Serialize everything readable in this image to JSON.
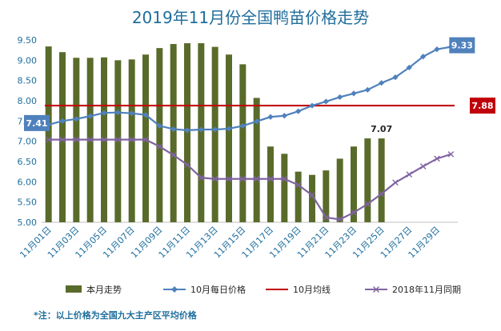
{
  "chart_data": {
    "type": "bar",
    "title": "2019年11月份全国鸭苗价格走势",
    "note": "*注：以上价格为全国九大主产区平均价格",
    "ylim": [
      5.0,
      9.5
    ],
    "yticks": [
      "5.00",
      "5.50",
      "6.00",
      "6.50",
      "7.00",
      "7.50",
      "8.00",
      "8.50",
      "9.00",
      "9.50"
    ],
    "categories": [
      "11月01日",
      "11月02日",
      "11月03日",
      "11月04日",
      "11月05日",
      "11月06日",
      "11月07日",
      "11月08日",
      "11月09日",
      "11月10日",
      "11月11日",
      "11月12日",
      "11月13日",
      "11月14日",
      "11月15日",
      "11月16日",
      "11月17日",
      "11月18日",
      "11月19日",
      "11月20日",
      "11月21日",
      "11月22日",
      "11月23日",
      "11月24日",
      "11月25日",
      "11月26日",
      "11月27日",
      "11月28日",
      "11月29日",
      "11月30日"
    ],
    "tick_labels": [
      "11月01日",
      "",
      "11月03日",
      "",
      "11月05日",
      "",
      "11月07日",
      "",
      "11月09日",
      "",
      "11月11日",
      "",
      "11月13日",
      "",
      "11月15日",
      "",
      "11月17日",
      "",
      "11月19日",
      "",
      "11月21日",
      "",
      "11月23日",
      "",
      "11月25日",
      "",
      "11月27日",
      "",
      "11月29日",
      ""
    ],
    "series": [
      {
        "name": "本月走势",
        "type": "bar",
        "color": "#596b2a",
        "values": [
          9.34,
          9.2,
          9.06,
          9.06,
          9.07,
          9.0,
          9.02,
          9.14,
          9.3,
          9.4,
          9.42,
          9.42,
          9.33,
          9.14,
          8.9,
          8.07,
          6.87,
          6.69,
          6.25,
          6.17,
          6.28,
          6.57,
          6.87,
          7.07,
          7.07,
          null,
          null,
          null,
          null,
          null
        ]
      },
      {
        "name": "10月每日价格",
        "type": "line",
        "color": "#4f81bd",
        "values": [
          7.41,
          7.5,
          7.55,
          7.62,
          7.7,
          7.71,
          7.69,
          7.65,
          7.38,
          7.3,
          7.27,
          7.29,
          7.29,
          7.31,
          7.38,
          7.49,
          7.6,
          7.63,
          7.74,
          7.88,
          7.98,
          8.09,
          8.18,
          8.27,
          8.44,
          8.58,
          8.82,
          9.09,
          9.27,
          9.33
        ]
      },
      {
        "name": "10月均线",
        "type": "line",
        "color": "#c0000a",
        "values": [
          7.88,
          7.88,
          7.88,
          7.88,
          7.88,
          7.88,
          7.88,
          7.88,
          7.88,
          7.88,
          7.88,
          7.88,
          7.88,
          7.88,
          7.88,
          7.88,
          7.88,
          7.88,
          7.88,
          7.88,
          7.88,
          7.88,
          7.88,
          7.88,
          7.88,
          7.88,
          7.88,
          7.88,
          7.88,
          7.88
        ]
      },
      {
        "name": "2018年11月同期",
        "type": "line",
        "color": "#8064a2",
        "values": [
          7.04,
          7.04,
          7.04,
          7.04,
          7.04,
          7.04,
          7.04,
          7.04,
          6.87,
          6.66,
          6.42,
          6.1,
          6.07,
          6.07,
          6.07,
          6.07,
          6.07,
          6.07,
          5.92,
          5.67,
          5.12,
          5.07,
          5.24,
          5.45,
          5.7,
          5.98,
          6.18,
          6.38,
          6.57,
          6.68
        ]
      }
    ],
    "annotations": [
      {
        "text": "7.41",
        "series": 1,
        "index": 0,
        "boxed": true
      },
      {
        "text": "9.33",
        "series": 1,
        "index": 29,
        "boxed": true
      },
      {
        "text": "7.88",
        "series": 2,
        "index": 29,
        "boxed": true
      },
      {
        "text": "7.07",
        "series": 0,
        "index": 24,
        "boxed": false
      }
    ],
    "legend": "bottom",
    "grid": false
  }
}
